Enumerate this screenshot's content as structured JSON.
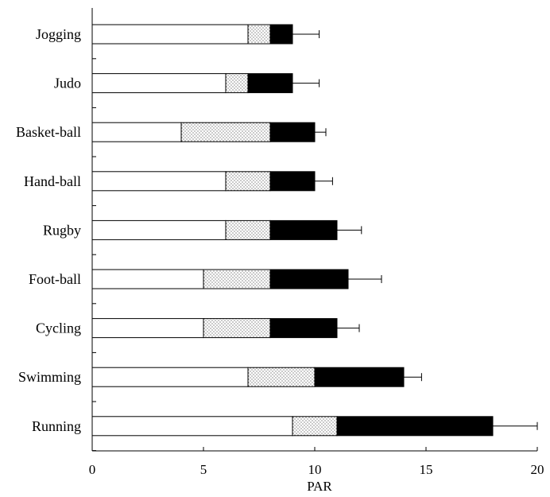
{
  "chart_data": {
    "type": "bar",
    "orientation": "horizontal",
    "stacked": true,
    "categories": [
      "Jogging",
      "Judo",
      "Basket-ball",
      "Hand-ball",
      "Rugby",
      "Foot-ball",
      "Cycling",
      "Swimming",
      "Running"
    ],
    "series": [
      {
        "values": [
          7,
          6,
          4,
          6,
          6,
          5,
          5,
          7,
          9
        ],
        "fill": "white"
      },
      {
        "values": [
          1,
          1,
          4,
          2,
          2,
          3,
          3,
          3,
          2
        ],
        "fill": "dotted"
      },
      {
        "values": [
          1,
          2,
          2,
          2,
          3,
          3.5,
          3,
          4,
          7
        ],
        "fill": "black"
      }
    ],
    "totals": [
      9,
      9,
      10,
      10,
      11,
      11.5,
      11,
      14,
      18
    ],
    "error_plus": [
      1.2,
      1.2,
      0.5,
      0.8,
      1.1,
      1.5,
      1.0,
      0.8,
      2.0
    ],
    "xlabel": "PAR",
    "xlim": [
      0,
      20
    ],
    "xticks": [
      0,
      5,
      10,
      15,
      20
    ],
    "title": "",
    "grid": false,
    "legend": "none"
  }
}
